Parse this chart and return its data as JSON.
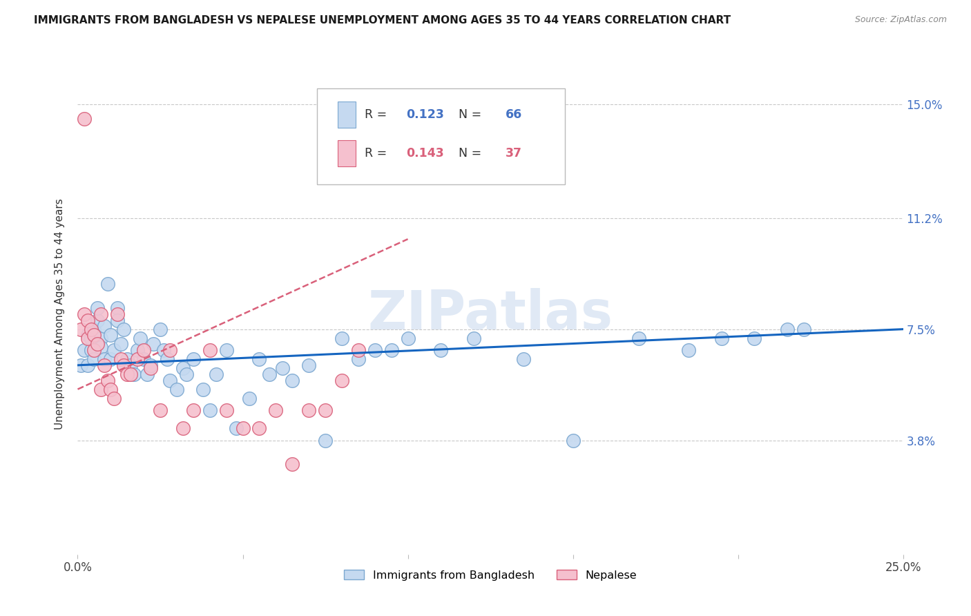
{
  "title": "IMMIGRANTS FROM BANGLADESH VS NEPALESE UNEMPLOYMENT AMONG AGES 35 TO 44 YEARS CORRELATION CHART",
  "source": "Source: ZipAtlas.com",
  "ylabel": "Unemployment Among Ages 35 to 44 years",
  "xlim": [
    0.0,
    0.25
  ],
  "ylim": [
    0.0,
    0.16
  ],
  "xticks": [
    0.0,
    0.05,
    0.1,
    0.15,
    0.2,
    0.25
  ],
  "xtick_labels": [
    "0.0%",
    "",
    "",
    "",
    "",
    "25.0%"
  ],
  "ytick_labels_right": [
    "3.8%",
    "7.5%",
    "11.2%",
    "15.0%"
  ],
  "ytick_vals_right": [
    0.038,
    0.075,
    0.112,
    0.15
  ],
  "grid_color": "#c8c8c8",
  "watermark": "ZIPatlas",
  "series": [
    {
      "name": "Immigrants from Bangladesh",
      "R": 0.123,
      "N": 66,
      "color": "#c5d9f0",
      "edge_color": "#7ba7d0",
      "x": [
        0.001,
        0.002,
        0.003,
        0.003,
        0.004,
        0.004,
        0.005,
        0.005,
        0.006,
        0.006,
        0.007,
        0.007,
        0.008,
        0.008,
        0.009,
        0.01,
        0.01,
        0.011,
        0.012,
        0.012,
        0.013,
        0.014,
        0.015,
        0.016,
        0.017,
        0.018,
        0.019,
        0.02,
        0.021,
        0.022,
        0.023,
        0.025,
        0.026,
        0.027,
        0.028,
        0.03,
        0.032,
        0.033,
        0.035,
        0.038,
        0.04,
        0.042,
        0.045,
        0.048,
        0.052,
        0.055,
        0.058,
        0.062,
        0.065,
        0.07,
        0.075,
        0.08,
        0.085,
        0.09,
        0.095,
        0.1,
        0.11,
        0.12,
        0.135,
        0.15,
        0.17,
        0.185,
        0.195,
        0.205,
        0.215,
        0.22
      ],
      "y": [
        0.063,
        0.068,
        0.073,
        0.063,
        0.072,
        0.068,
        0.075,
        0.065,
        0.078,
        0.082,
        0.072,
        0.069,
        0.076,
        0.065,
        0.09,
        0.073,
        0.065,
        0.068,
        0.082,
        0.078,
        0.07,
        0.075,
        0.065,
        0.063,
        0.06,
        0.068,
        0.072,
        0.065,
        0.06,
        0.063,
        0.07,
        0.075,
        0.068,
        0.065,
        0.058,
        0.055,
        0.062,
        0.06,
        0.065,
        0.055,
        0.048,
        0.06,
        0.068,
        0.042,
        0.052,
        0.065,
        0.06,
        0.062,
        0.058,
        0.063,
        0.038,
        0.072,
        0.065,
        0.068,
        0.068,
        0.072,
        0.068,
        0.072,
        0.065,
        0.038,
        0.072,
        0.068,
        0.072,
        0.072,
        0.075,
        0.075
      ],
      "trend_style": "solid",
      "trend_color": "#1565c0",
      "trend_x0": 0.0,
      "trend_x1": 0.25,
      "trend_y0": 0.063,
      "trend_y1": 0.075
    },
    {
      "name": "Nepalese",
      "R": 0.143,
      "N": 37,
      "color": "#f5c0ce",
      "edge_color": "#d9607a",
      "x": [
        0.001,
        0.002,
        0.003,
        0.003,
        0.004,
        0.005,
        0.005,
        0.006,
        0.007,
        0.007,
        0.008,
        0.009,
        0.01,
        0.011,
        0.012,
        0.013,
        0.014,
        0.015,
        0.016,
        0.018,
        0.02,
        0.022,
        0.025,
        0.028,
        0.032,
        0.035,
        0.04,
        0.045,
        0.05,
        0.055,
        0.06,
        0.065,
        0.07,
        0.075,
        0.08,
        0.085,
        0.002
      ],
      "y": [
        0.075,
        0.08,
        0.078,
        0.072,
        0.075,
        0.073,
        0.068,
        0.07,
        0.08,
        0.055,
        0.063,
        0.058,
        0.055,
        0.052,
        0.08,
        0.065,
        0.063,
        0.06,
        0.06,
        0.065,
        0.068,
        0.062,
        0.048,
        0.068,
        0.042,
        0.048,
        0.068,
        0.048,
        0.042,
        0.042,
        0.048,
        0.03,
        0.048,
        0.048,
        0.058,
        0.068,
        0.145
      ],
      "trend_style": "dashed",
      "trend_color": "#d9607a",
      "trend_x0": 0.0,
      "trend_x1": 0.1,
      "trend_y0": 0.055,
      "trend_y1": 0.105
    }
  ]
}
